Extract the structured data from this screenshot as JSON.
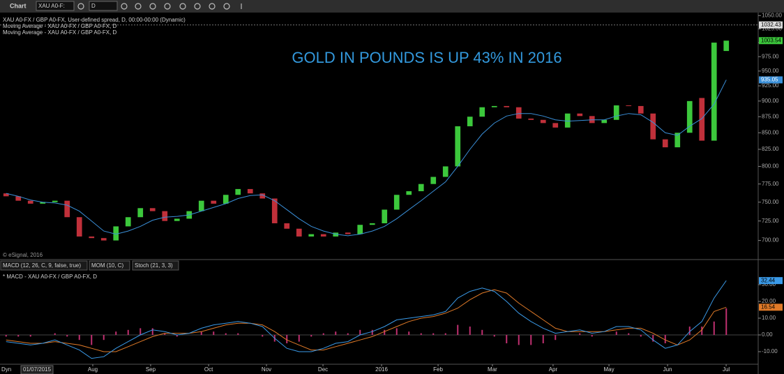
{
  "toolbar": {
    "title": "Chart",
    "symbol": "XAU A0-F:",
    "interval": "D"
  },
  "chart_data": [
    {
      "type": "candlestick",
      "legend": [
        "XAU A0-FX / GBP A0-FX, User-defined spread, D, 00:00-00:00 (Dynamic)",
        "Moving Average - XAU A0-FX / GBP A0-FX, D",
        "Moving Average - XAU A0-FX / GBP A0-FX, D"
      ],
      "annotation": "GOLD IN POUNDS IS UP 43% IN 2016",
      "copyright": "© eSignal, 2016",
      "log_scale": true,
      "up_color": "#3cc83c",
      "down_color": "#c0303a",
      "x": [
        0.5,
        1.5,
        2.5,
        3.5,
        4.5,
        5.5,
        6.5,
        7.5,
        8.5,
        9.5,
        10.5,
        11.5,
        12.5,
        13.5,
        14.5,
        15.5,
        16.5,
        17.5,
        18.5,
        19.5,
        20.5,
        21.5,
        22.5,
        23.5,
        24.5,
        25.5,
        26.5,
        27.5,
        28.5,
        29.5,
        30.5,
        31.5,
        32.5,
        33.5,
        34.5,
        35.5,
        36.5,
        37.5,
        38.5,
        39.5,
        40.5,
        41.5,
        42.5,
        43.5,
        44.5,
        45.5,
        46.5,
        47.5,
        48.5,
        49.5,
        50.5,
        51.5,
        52.5,
        53.5,
        54.5,
        55.5,
        56.5,
        57.5,
        58.5,
        59.5
      ],
      "open": [
        762,
        758,
        752,
        748,
        750,
        752,
        730,
        705,
        703,
        700,
        718,
        730,
        742,
        738,
        725,
        728,
        738,
        752,
        748,
        760,
        768,
        762,
        755,
        722,
        715,
        705,
        708,
        705,
        710,
        708,
        720,
        722,
        740,
        760,
        765,
        775,
        785,
        800,
        860,
        875,
        890,
        892,
        890,
        872,
        870,
        865,
        858,
        880,
        876,
        865,
        870,
        893,
        892,
        880,
        840,
        828,
        850,
        905,
        838,
        985
      ],
      "close": [
        758,
        752,
        748,
        750,
        752,
        730,
        705,
        703,
        700,
        718,
        730,
        742,
        738,
        725,
        728,
        738,
        752,
        748,
        760,
        768,
        762,
        755,
        722,
        715,
        705,
        708,
        705,
        710,
        708,
        720,
        722,
        740,
        760,
        765,
        775,
        785,
        800,
        860,
        875,
        890,
        892,
        890,
        872,
        870,
        865,
        858,
        880,
        876,
        865,
        870,
        893,
        892,
        880,
        840,
        828,
        850,
        900,
        838,
        1000,
        1003.54
      ],
      "ma": {
        "color": "#3a8fd8",
        "values": [
          762,
          758,
          753,
          750,
          749,
          746,
          738,
          725,
          712,
          708,
          712,
          718,
          726,
          730,
          731,
          733,
          738,
          743,
          748,
          755,
          759,
          760,
          752,
          740,
          728,
          718,
          712,
          708,
          706,
          708,
          712,
          718,
          728,
          740,
          752,
          765,
          778,
          800,
          825,
          848,
          865,
          876,
          880,
          880,
          876,
          870,
          868,
          869,
          870,
          870,
          876,
          880,
          878,
          866,
          850,
          846,
          860,
          872,
          895,
          935.05
        ]
      },
      "high": 1032.43,
      "xlim": [
        0,
        62
      ],
      "xticks": [
        {
          "value": 7.6,
          "label": "Aug"
        },
        {
          "value": 12.34,
          "label": "Sep"
        },
        {
          "value": 17.09,
          "label": "Oct"
        },
        {
          "value": 21.83,
          "label": "Nov"
        },
        {
          "value": 26.46,
          "label": "Dec"
        },
        {
          "value": 31.26,
          "label": "2016"
        },
        {
          "value": 35.89,
          "label": "Feb"
        },
        {
          "value": 40.34,
          "label": "Mar"
        },
        {
          "value": 45.31,
          "label": "Apr"
        },
        {
          "value": 49.89,
          "label": "May"
        },
        {
          "value": 54.69,
          "label": "Jun"
        },
        {
          "value": 59.49,
          "label": "Jul"
        }
      ],
      "start_label": "Dyn",
      "start_date": "01/07/2015",
      "ylim": [
        678,
        1061
      ],
      "yticks": [
        {
          "value": 700,
          "label": "700.00"
        },
        {
          "value": 725,
          "label": "725.00"
        },
        {
          "value": 750,
          "label": "750.00"
        },
        {
          "value": 775,
          "label": "775.00"
        },
        {
          "value": 800,
          "label": "800.00"
        },
        {
          "value": 825,
          "label": "825.00"
        },
        {
          "value": 850,
          "label": "850.00"
        },
        {
          "value": 875,
          "label": "875.00"
        },
        {
          "value": 900,
          "label": "900.00"
        },
        {
          "value": 925,
          "label": "925.00"
        },
        {
          "value": 950,
          "label": "950.00"
        },
        {
          "value": 975,
          "label": "975.00"
        },
        {
          "value": 1000,
          "label": "1000.00"
        },
        {
          "value": 1025,
          "label": "1025.00"
        },
        {
          "value": 1050,
          "label": "1050.00"
        }
      ]
    },
    {
      "type": "macd",
      "tabs": [
        "MACD (12, 26, C, 9, false, true)",
        "MOM (10, C)",
        "Stoch (21, 3, 3)"
      ],
      "legend": "* MACD - XAU A0-FX / GBP A0-FX, D",
      "macd": {
        "color": "#3a9ae8",
        "values": [
          -4,
          -5,
          -6,
          -5,
          -3,
          -6,
          -9,
          -14,
          -13,
          -8,
          -4,
          0,
          3,
          2,
          0,
          1,
          4,
          6,
          7,
          8,
          7,
          5,
          -2,
          -8,
          -10,
          -10,
          -8,
          -5,
          -4,
          0,
          2,
          5,
          9,
          10,
          11,
          12,
          14,
          22,
          26,
          28,
          26,
          20,
          13,
          8,
          4,
          1,
          2,
          3,
          1,
          2,
          5,
          5,
          3,
          -3,
          -8,
          -6,
          2,
          8,
          22,
          32.44
        ]
      },
      "signal": {
        "color": "#e07a28",
        "values": [
          -3,
          -4,
          -5,
          -5,
          -4,
          -5,
          -6,
          -8,
          -10,
          -10,
          -7,
          -4,
          -1,
          1,
          1,
          1,
          2,
          4,
          6,
          7,
          7,
          6,
          2,
          -3,
          -6,
          -9,
          -9,
          -7,
          -5,
          -3,
          -1,
          2,
          5,
          8,
          10,
          11,
          13,
          16,
          21,
          25,
          27,
          25,
          19,
          14,
          9,
          4,
          2,
          2,
          2,
          2,
          3,
          4,
          4,
          1,
          -3,
          -6,
          -3,
          3,
          14,
          16.54
        ]
      },
      "histogram": {
        "color": "#c03070",
        "values": [
          -1,
          -1,
          -1,
          0,
          1,
          -1,
          -3,
          -6,
          -3,
          2,
          3,
          4,
          4,
          1,
          -1,
          0,
          2,
          2,
          1,
          1,
          0,
          -1,
          -4,
          -5,
          -4,
          -1,
          1,
          2,
          1,
          3,
          3,
          3,
          4,
          2,
          1,
          1,
          1,
          6,
          5,
          3,
          -1,
          -5,
          -6,
          -6,
          -5,
          -3,
          0,
          1,
          -1,
          0,
          2,
          1,
          -1,
          -4,
          -5,
          0,
          5,
          5,
          8,
          15.9
        ]
      },
      "ylim": [
        -17.5,
        37.5
      ],
      "yticks": [
        {
          "value": -10,
          "label": "-10.00"
        },
        {
          "value": 0,
          "label": "0.00"
        },
        {
          "value": 10,
          "label": "10.00"
        },
        {
          "value": 20,
          "label": "20.00"
        },
        {
          "value": 30,
          "label": "30.00"
        }
      ]
    }
  ]
}
